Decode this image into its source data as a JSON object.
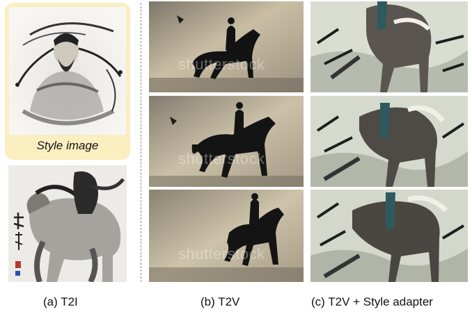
{
  "panel_a": {
    "style_label": "Style image",
    "caption": "(a) T2I"
  },
  "panel_b": {
    "caption": "(b) T2V",
    "watermark": "shutterstock"
  },
  "panel_c": {
    "caption": "(c) T2V + Style adapter"
  },
  "colors": {
    "style_card": "#fbeec0",
    "sepia_bg": "#c9bea4",
    "ink": "#1a1a1a"
  }
}
